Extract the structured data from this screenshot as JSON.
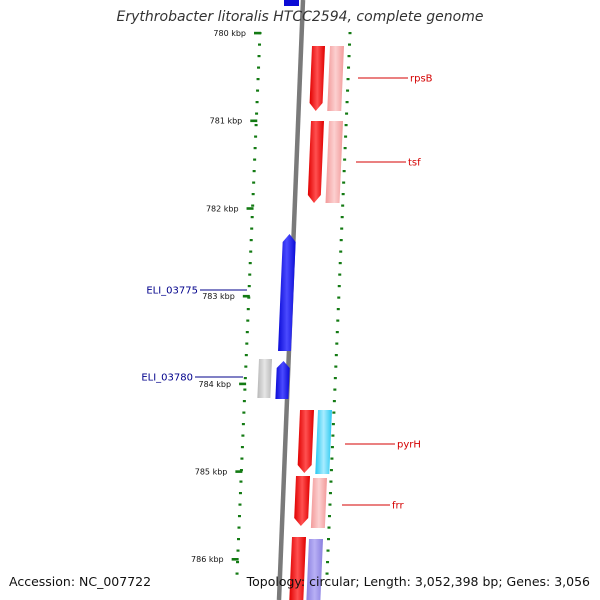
{
  "title": "Erythrobacter litoralis HTCC2594, complete genome",
  "footer": {
    "accession": "Accession: NC_007722",
    "summary": "Topology: circular; Length: 3,052,398 bp; Genes: 3,056"
  },
  "colors": {
    "forward_gene": "#e00000",
    "forward_gene_light": "#f29a9a",
    "reverse_gene": "#0b0bd6",
    "reverse_gene_light": "#8a7fe0",
    "cyan_gene": "#28c8f0",
    "grey_gene": "#b8b8b8",
    "backbone": "#7a7a7a",
    "ruler_tick": "#137a13",
    "forward_label": "#d40000",
    "reverse_label": "#00008b"
  },
  "ruler": {
    "labels": [
      "780 kbp",
      "781 kbp",
      "782 kbp",
      "783 kbp",
      "784 kbp",
      "785 kbp",
      "786 kbp"
    ]
  },
  "genes": [
    {
      "label": "rpsB",
      "strand": "forward"
    },
    {
      "label": "tsf",
      "strand": "forward"
    },
    {
      "label": "ELI_03775",
      "strand": "reverse"
    },
    {
      "label": "ELI_03780",
      "strand": "reverse"
    },
    {
      "label": "pyrH",
      "strand": "forward"
    },
    {
      "label": "frr",
      "strand": "forward"
    }
  ]
}
